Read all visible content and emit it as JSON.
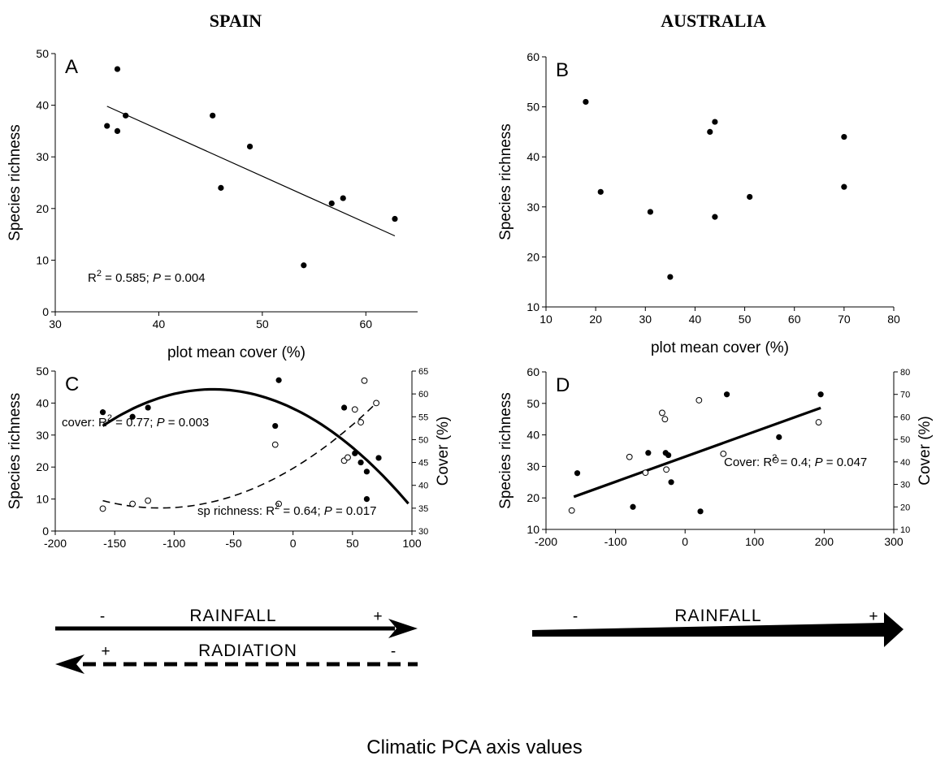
{
  "headers": {
    "spain": "SPAIN",
    "australia": "AUSTRALIA"
  },
  "footer": "Climatic PCA axis values",
  "arrows": {
    "c_rainfall": {
      "label": "RAINFALL",
      "minus": "-",
      "plus": "+"
    },
    "c_radiation": {
      "label": "RADIATION",
      "plus": "+",
      "minus": "-"
    },
    "d_rainfall": {
      "label": "RAINFALL",
      "minus": "-",
      "plus": "+"
    }
  },
  "chart_data": [
    {
      "panel": "A",
      "type": "scatter",
      "xlabel": "plot mean cover (%)",
      "ylabel": "Species richness",
      "xlim": [
        30,
        65
      ],
      "ylim": [
        0,
        50
      ],
      "xticks": [
        "30",
        "40",
        "50",
        "60"
      ],
      "yticks": [
        "0",
        "10",
        "20",
        "30",
        "40",
        "50"
      ],
      "points": [
        {
          "x": 35,
          "y": 36
        },
        {
          "x": 36,
          "y": 47
        },
        {
          "x": 36,
          "y": 35
        },
        {
          "x": 36.8,
          "y": 38
        },
        {
          "x": 45.2,
          "y": 38
        },
        {
          "x": 46,
          "y": 24
        },
        {
          "x": 48.8,
          "y": 32
        },
        {
          "x": 54,
          "y": 9
        },
        {
          "x": 56.7,
          "y": 21
        },
        {
          "x": 57.8,
          "y": 22
        },
        {
          "x": 62.8,
          "y": 18
        }
      ],
      "fit_line": {
        "x": [
          35,
          62.8
        ],
        "y": [
          39.8,
          14.7
        ]
      },
      "annotation": {
        "prefix": "R",
        "sup": "2",
        "mid": " = 0.585; ",
        "p": "P",
        "suffix": " = 0.004"
      }
    },
    {
      "panel": "B",
      "type": "scatter",
      "xlabel": "plot mean cover (%)",
      "ylabel": "Species richness",
      "xlim": [
        10,
        80
      ],
      "ylim": [
        10,
        60
      ],
      "xticks": [
        "10",
        "20",
        "30",
        "40",
        "50",
        "60",
        "70",
        "80"
      ],
      "yticks": [
        "10",
        "20",
        "30",
        "40",
        "50",
        "60"
      ],
      "points": [
        {
          "x": 18,
          "y": 51
        },
        {
          "x": 21,
          "y": 33
        },
        {
          "x": 31,
          "y": 29
        },
        {
          "x": 35,
          "y": 16
        },
        {
          "x": 43,
          "y": 45
        },
        {
          "x": 44,
          "y": 47
        },
        {
          "x": 44,
          "y": 28
        },
        {
          "x": 51,
          "y": 32
        },
        {
          "x": 70,
          "y": 44
        },
        {
          "x": 70,
          "y": 34
        }
      ]
    },
    {
      "panel": "C",
      "type": "scatter",
      "ylabel": "Species richness",
      "y2label": "Cover (%)",
      "xlim": [
        -200,
        100
      ],
      "ylim": [
        0,
        50
      ],
      "y2lim": [
        30,
        65
      ],
      "xticks": [
        "-200",
        "-150",
        "-100",
        "-50",
        "0",
        "50",
        "100"
      ],
      "yticks": [
        "0",
        "10",
        "20",
        "30",
        "40",
        "50"
      ],
      "y2ticks": [
        "30",
        "35",
        "40",
        "45",
        "50",
        "55",
        "60",
        "65"
      ],
      "series": [
        {
          "name": "cover",
          "marker": "filled",
          "axis": "right",
          "points": [
            {
              "x": -160,
              "y": 56
            },
            {
              "x": -135,
              "y": 55
            },
            {
              "x": -122,
              "y": 57
            },
            {
              "x": -15,
              "y": 53
            },
            {
              "x": -12,
              "y": 63
            },
            {
              "x": 43,
              "y": 57
            },
            {
              "x": 52,
              "y": 47
            },
            {
              "x": 57,
              "y": 45
            },
            {
              "x": 62,
              "y": 43
            },
            {
              "x": 62,
              "y": 37
            },
            {
              "x": 72,
              "y": 46
            }
          ],
          "curve": {
            "x": [
              -160,
              -70,
              97
            ],
            "y": [
              53,
              61,
              36
            ]
          }
        },
        {
          "name": "sp richness",
          "marker": "open",
          "axis": "left",
          "points": [
            {
              "x": -160,
              "y": 7
            },
            {
              "x": -135,
              "y": 8.5
            },
            {
              "x": -122,
              "y": 9.5
            },
            {
              "x": -15,
              "y": 27
            },
            {
              "x": -12,
              "y": 8.5
            },
            {
              "x": 43,
              "y": 22
            },
            {
              "x": 46,
              "y": 23
            },
            {
              "x": 52,
              "y": 38
            },
            {
              "x": 57,
              "y": 34
            },
            {
              "x": 60,
              "y": 47
            },
            {
              "x": 70,
              "y": 40
            }
          ],
          "curve": {
            "x": [
              -160,
              -110,
              70
            ],
            "y": [
              9.5,
              7.2,
              40
            ]
          }
        }
      ],
      "annotations": [
        {
          "prefix": "cover: R",
          "sup": "2",
          "mid": " = 0.77; ",
          "p": "P",
          "suffix": " = 0.003"
        },
        {
          "prefix": "sp richness: R",
          "sup": "2",
          "mid": " = 0.64; ",
          "p": "P",
          "suffix": " = 0.017"
        }
      ]
    },
    {
      "panel": "D",
      "type": "scatter",
      "ylabel": "Species richness",
      "y2label": "Cover (%)",
      "xlim": [
        -200,
        300
      ],
      "ylim": [
        10,
        60
      ],
      "y2lim": [
        10,
        80
      ],
      "xticks": [
        "-200",
        "-100",
        "0",
        "100",
        "200",
        "300"
      ],
      "yticks": [
        "10",
        "20",
        "30",
        "40",
        "50",
        "60"
      ],
      "y2ticks": [
        "10",
        "20",
        "30",
        "40",
        "50",
        "60",
        "70",
        "80"
      ],
      "series": [
        {
          "name": "cover",
          "marker": "filled",
          "axis": "right",
          "points": [
            {
              "x": -155,
              "y": 35
            },
            {
              "x": -75,
              "y": 20
            },
            {
              "x": -53,
              "y": 44
            },
            {
              "x": -28,
              "y": 44
            },
            {
              "x": -24,
              "y": 43
            },
            {
              "x": -20,
              "y": 31
            },
            {
              "x": 22,
              "y": 18
            },
            {
              "x": 60,
              "y": 70
            },
            {
              "x": 135,
              "y": 51
            },
            {
              "x": 195,
              "y": 70
            }
          ],
          "line": {
            "x": [
              -160,
              195
            ],
            "y": [
              24.5,
              64
            ]
          }
        },
        {
          "name": "sp richness",
          "marker": "open",
          "axis": "left",
          "points": [
            {
              "x": -163,
              "y": 16
            },
            {
              "x": -80,
              "y": 33
            },
            {
              "x": -57,
              "y": 28
            },
            {
              "x": -33,
              "y": 47
            },
            {
              "x": -29,
              "y": 45
            },
            {
              "x": -27,
              "y": 29
            },
            {
              "x": 20,
              "y": 51
            },
            {
              "x": 55,
              "y": 34
            },
            {
              "x": 130,
              "y": 32
            },
            {
              "x": 192,
              "y": 44
            }
          ]
        }
      ],
      "annotation": {
        "prefix": "Cover: R",
        "sup": "2",
        "mid": " = 0.4; ",
        "p": "P",
        "suffix": " = 0.047"
      }
    }
  ]
}
